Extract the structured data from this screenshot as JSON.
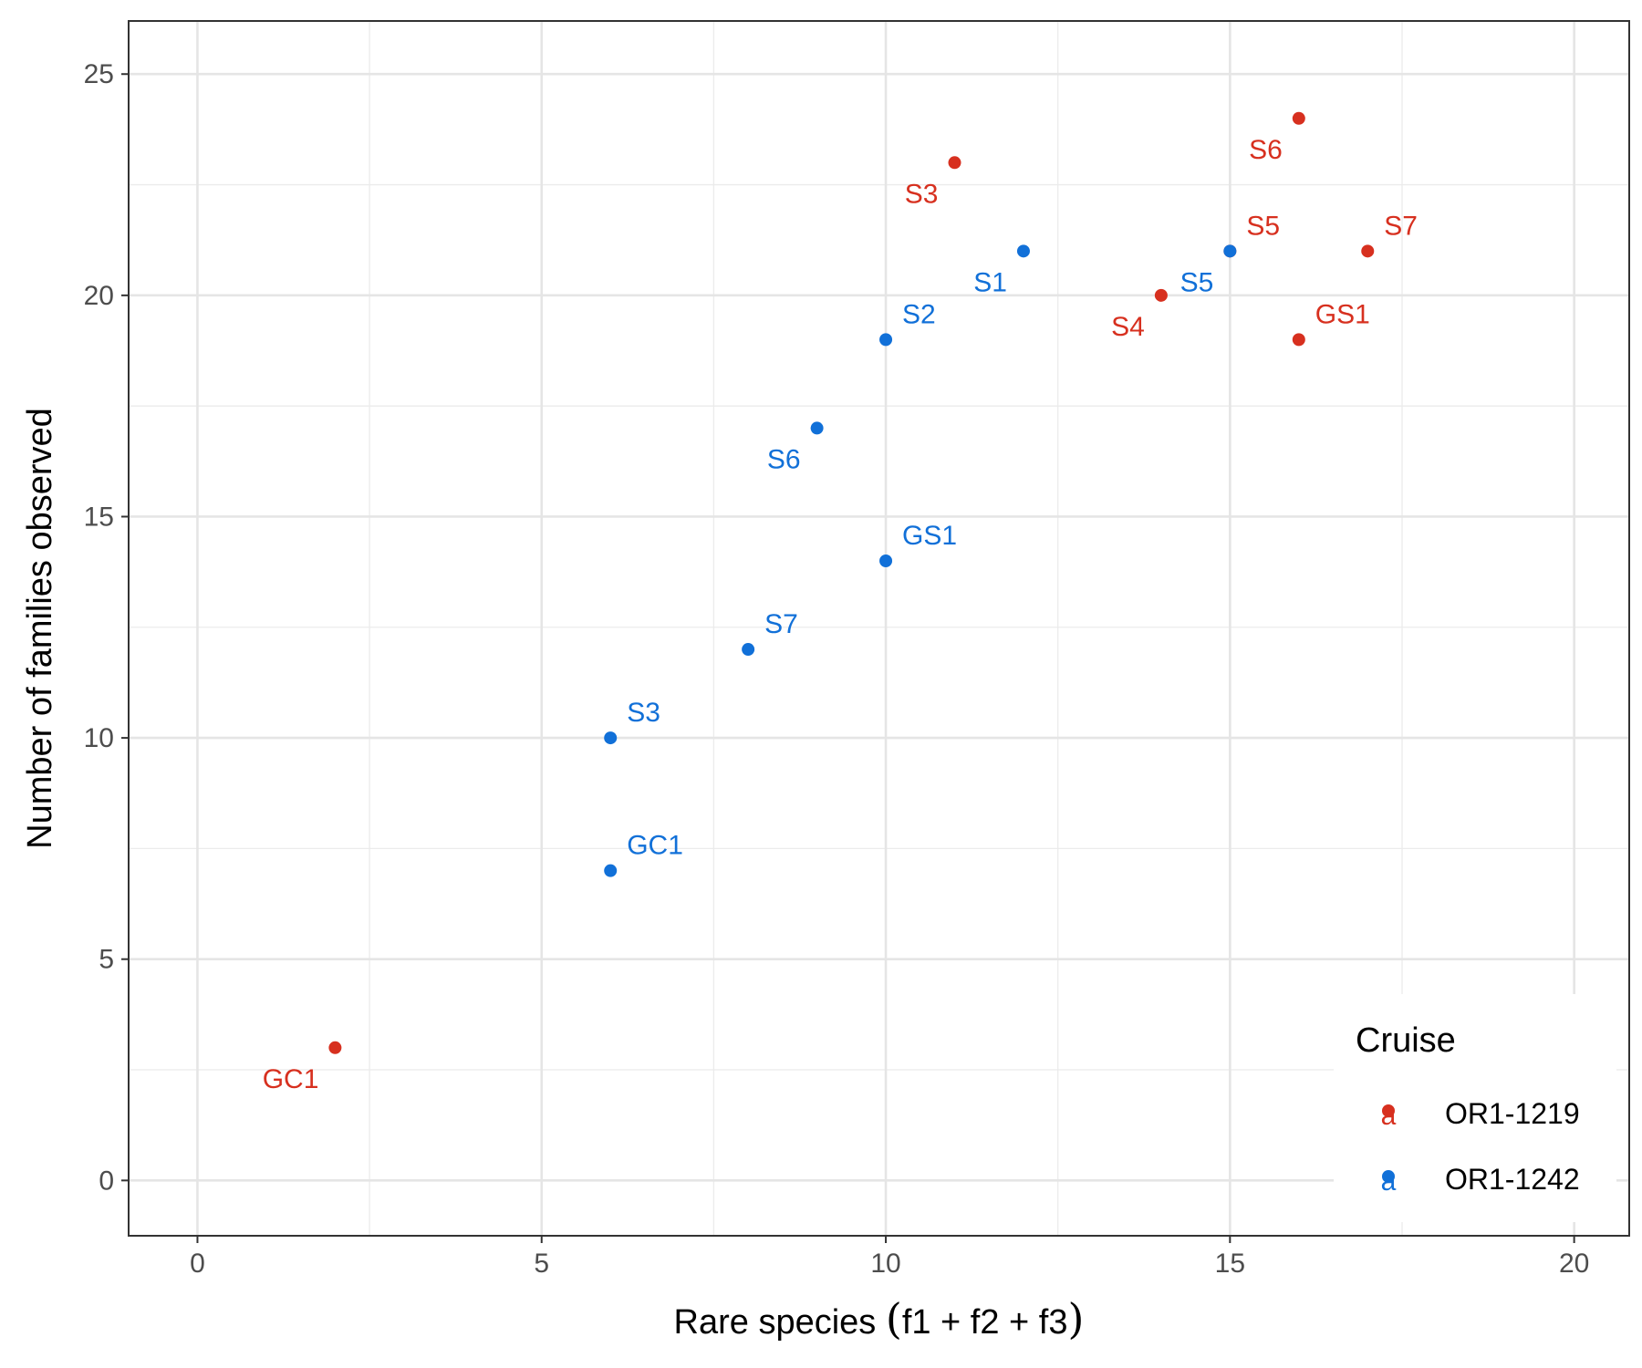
{
  "chart_data": {
    "type": "scatter",
    "title": "",
    "xlabel": {
      "prefix": "Rare species ",
      "open": "(",
      "expr": "f1 + f2 + f3",
      "close": ")"
    },
    "ylabel": "Number of families observed",
    "xlim": [
      -1,
      20.8
    ],
    "ylim": [
      -1.25,
      26.2
    ],
    "x_ticks": [
      0,
      5,
      10,
      15,
      20
    ],
    "y_ticks": [
      0,
      5,
      10,
      15,
      20,
      25
    ],
    "grid": true,
    "legend": {
      "title": "Cruise",
      "position": "bottom-right",
      "glyph": "a"
    },
    "series": [
      {
        "name": "OR1-1219",
        "color": "#d7301f",
        "points": [
          {
            "x": 2,
            "y": 3,
            "label": "GC1",
            "anchor": "bottom-left"
          },
          {
            "x": 11,
            "y": 23,
            "label": "S3",
            "anchor": "bottom-left"
          },
          {
            "x": 14,
            "y": 20,
            "label": "S4",
            "anchor": "bottom-left"
          },
          {
            "x": 16,
            "y": 24,
            "label": "S6",
            "anchor": "bottom-left"
          },
          {
            "x": 16,
            "y": 19,
            "label": "GS1",
            "anchor": "top-right"
          },
          {
            "x": 17,
            "y": 21,
            "label": "S7",
            "anchor": "top-right"
          },
          {
            "x": 15,
            "y": 21,
            "label": "S5",
            "anchor": "top-right"
          }
        ]
      },
      {
        "name": "OR1-1242",
        "color": "#1170d8",
        "points": [
          {
            "x": 6,
            "y": 7,
            "label": "GC1",
            "anchor": "top-right"
          },
          {
            "x": 6,
            "y": 10,
            "label": "S3",
            "anchor": "top-right"
          },
          {
            "x": 8,
            "y": 12,
            "label": "S7",
            "anchor": "top-right"
          },
          {
            "x": 10,
            "y": 14,
            "label": "GS1",
            "anchor": "top-right"
          },
          {
            "x": 9,
            "y": 17,
            "label": "S6",
            "anchor": "bottom-left"
          },
          {
            "x": 10,
            "y": 19,
            "label": "S2",
            "anchor": "top-right"
          },
          {
            "x": 12,
            "y": 21,
            "label": "S1",
            "anchor": "bottom-left"
          },
          {
            "x": 15,
            "y": 21,
            "label": "S5",
            "anchor": "bottom-left"
          }
        ]
      }
    ]
  }
}
